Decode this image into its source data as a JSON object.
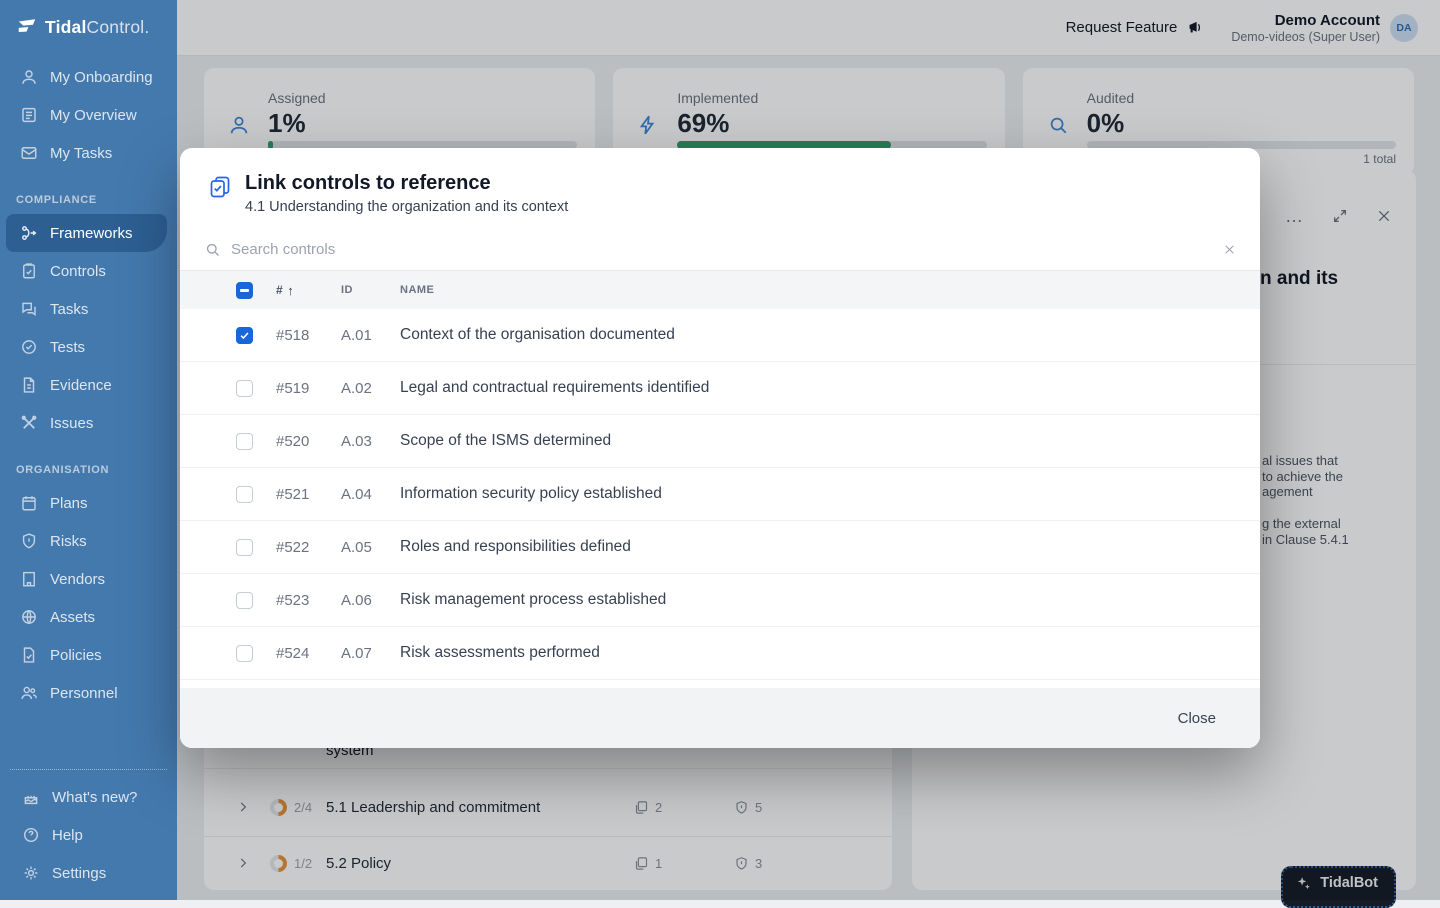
{
  "sidebar": {
    "logo": {
      "bold": "Tidal",
      "light": "Control."
    },
    "top_items": [
      {
        "label": "My Onboarding"
      },
      {
        "label": "My Overview"
      },
      {
        "label": "My Tasks"
      }
    ],
    "sections": [
      {
        "title": "COMPLIANCE",
        "items": [
          {
            "label": "Frameworks",
            "active": true
          },
          {
            "label": "Controls"
          },
          {
            "label": "Tasks"
          },
          {
            "label": "Tests"
          },
          {
            "label": "Evidence"
          },
          {
            "label": "Issues"
          }
        ]
      },
      {
        "title": "ORGANISATION",
        "items": [
          {
            "label": "Plans"
          },
          {
            "label": "Risks"
          },
          {
            "label": "Vendors"
          },
          {
            "label": "Assets"
          },
          {
            "label": "Policies"
          },
          {
            "label": "Personnel"
          }
        ]
      }
    ],
    "footer_items": [
      {
        "label": "What's new?"
      },
      {
        "label": "Help"
      },
      {
        "label": "Settings"
      }
    ]
  },
  "header": {
    "request_feature": "Request Feature",
    "account": {
      "name": "Demo Account",
      "role": "Demo-videos (Super User)",
      "initials": "DA"
    }
  },
  "cards": [
    {
      "label": "Assigned",
      "value": "1%",
      "percent": 1
    },
    {
      "label": "Implemented",
      "value": "69%",
      "percent": 69
    },
    {
      "label": "Audited",
      "value": "0%",
      "percent": 0,
      "total": "1 total"
    }
  ],
  "modal": {
    "title": "Link controls to reference",
    "subtitle": "4.1 Understanding the organization and its context",
    "search_placeholder": "Search controls",
    "columns": {
      "num": "#",
      "id": "ID",
      "name": "NAME"
    },
    "rows": [
      {
        "num": "#518",
        "id": "A.01",
        "name": "Context of the organisation documented",
        "checked": true
      },
      {
        "num": "#519",
        "id": "A.02",
        "name": "Legal and contractual requirements identified",
        "checked": false
      },
      {
        "num": "#520",
        "id": "A.03",
        "name": "Scope of the ISMS determined",
        "checked": false
      },
      {
        "num": "#521",
        "id": "A.04",
        "name": "Information security policy established",
        "checked": false
      },
      {
        "num": "#522",
        "id": "A.05",
        "name": "Roles and responsibilities defined",
        "checked": false
      },
      {
        "num": "#523",
        "id": "A.06",
        "name": "Risk management process established",
        "checked": false
      },
      {
        "num": "#524",
        "id": "A.07",
        "name": "Risk assessments performed",
        "checked": false
      }
    ],
    "close_label": "Close"
  },
  "background": {
    "drawer": {
      "heading_fragment": "n and its",
      "description_lines_1": [
        "al issues that",
        "to achieve the",
        "agement"
      ],
      "description_lines_2": [
        "g the external",
        "in Clause 5.4.1"
      ]
    },
    "framework_table": {
      "wrapped_fragment": "system",
      "rows": [
        {
          "fraction": "2/4",
          "name": "5.1 Leadership and commitment",
          "controls": "2",
          "risks": "5",
          "progress": 50
        },
        {
          "fraction": "1/2",
          "name": "5.2 Policy",
          "controls": "1",
          "risks": "3",
          "progress": 50
        }
      ]
    }
  },
  "tidalbot": {
    "label": "TidalBot"
  },
  "colors": {
    "sidebar": "#4479AE",
    "sidebar_active": "#2D5F93",
    "accent_blue": "#2563EB",
    "checkbox_blue": "#1A66D9",
    "progress_green": "#2F9E68",
    "donut_orange": "#E8923E"
  }
}
